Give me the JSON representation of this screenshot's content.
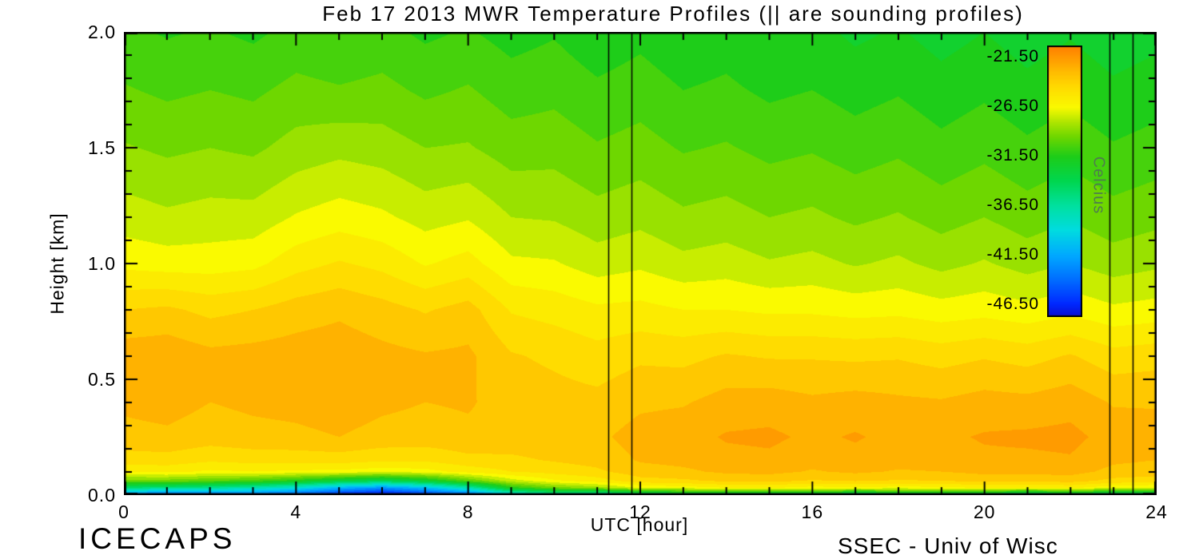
{
  "footer": {
    "left": "ICECAPS",
    "right": "SSEC - Univ of Wisc"
  },
  "chart_data": {
    "type": "heatmap",
    "title": "Feb 17 2013 MWR Temperature Profiles (|| are sounding profiles)",
    "xlabel": "UTC [hour]",
    "ylabel": "Height [km]",
    "xlim": [
      0,
      24
    ],
    "ylim": [
      0,
      2
    ],
    "x_ticks": {
      "major": [
        0,
        4,
        8,
        12,
        16,
        20,
        24
      ],
      "labels": [
        "0",
        "4",
        "8",
        "12",
        "16",
        "20",
        "24"
      ],
      "minor_step": 1
    },
    "y_ticks": {
      "major": [
        0,
        0.5,
        1,
        1.5,
        2
      ],
      "labels": [
        "0.0",
        "0.5",
        "1.0",
        "1.5",
        "2.0"
      ],
      "minor_step": 0.1
    },
    "hours": [
      0,
      1,
      2,
      3,
      4,
      5,
      6,
      7,
      8,
      9,
      10,
      11,
      12,
      13,
      14,
      15,
      16,
      17,
      18,
      19,
      20,
      21,
      22,
      23,
      24
    ],
    "heights": [
      0.0,
      0.03,
      0.06,
      0.1,
      0.15,
      0.25,
      0.4,
      0.6,
      0.8,
      1.0,
      1.2,
      1.5,
      1.75,
      2.0
    ],
    "temperature_c": [
      [
        -43.5,
        -44.5,
        -44.0,
        -44.0,
        -45.0,
        -47.0,
        -48.0,
        -46.5,
        -44.5,
        -39.5,
        -37.0,
        -38.0,
        -35.5,
        -34.5,
        -34.0,
        -35.0,
        -34.0,
        -35.5,
        -34.5,
        -33.5,
        -34.5,
        -36.0,
        -34.5,
        -35.5,
        -36.0
      ],
      [
        -35.0,
        -35.5,
        -36.0,
        -37.0,
        -38.5,
        -41.0,
        -42.5,
        -40.5,
        -37.0,
        -31.5,
        -29.5,
        -28.5,
        -26.8,
        -26.5,
        -26.0,
        -25.9,
        -26.4,
        -26.2,
        -26.4,
        -26.3,
        -25.9,
        -26.1,
        -25.8,
        -26.7,
        -27.0
      ],
      [
        -29.5,
        -29.5,
        -30.0,
        -30.5,
        -31.5,
        -33.0,
        -34.0,
        -32.5,
        -30.0,
        -27.5,
        -26.2,
        -25.5,
        -24.4,
        -24.2,
        -23.8,
        -23.7,
        -24.1,
        -23.9,
        -24.1,
        -24.0,
        -23.7,
        -23.8,
        -23.6,
        -24.3,
        -24.5
      ],
      [
        -25.8,
        -25.7,
        -26.2,
        -26.0,
        -26.2,
        -26.3,
        -26.6,
        -26.4,
        -25.6,
        -25.0,
        -24.6,
        -24.2,
        -23.4,
        -23.2,
        -22.8,
        -22.7,
        -23.1,
        -22.8,
        -23.1,
        -23.0,
        -22.7,
        -22.7,
        -22.6,
        -23.3,
        -23.5
      ],
      [
        -24.5,
        -24.4,
        -24.8,
        -24.6,
        -24.6,
        -24.5,
        -24.8,
        -24.8,
        -24.3,
        -24.2,
        -23.9,
        -23.6,
        -22.9,
        -22.7,
        -22.3,
        -22.2,
        -22.6,
        -22.3,
        -22.6,
        -22.5,
        -22.2,
        -22.2,
        -22.1,
        -22.8,
        -23.0
      ],
      [
        -23.3,
        -23.2,
        -23.5,
        -23.3,
        -23.2,
        -23.0,
        -23.3,
        -23.4,
        -23.2,
        -23.4,
        -23.3,
        -23.2,
        -22.6,
        -22.4,
        -21.9,
        -21.8,
        -22.2,
        -21.9,
        -22.3,
        -22.2,
        -21.9,
        -21.8,
        -21.7,
        -22.4,
        -22.6
      ],
      [
        -22.8,
        -22.6,
        -23.0,
        -22.8,
        -22.7,
        -22.5,
        -22.8,
        -23.0,
        -22.9,
        -23.4,
        -23.6,
        -23.7,
        -23.2,
        -23.1,
        -22.6,
        -22.5,
        -22.8,
        -22.6,
        -22.8,
        -22.9,
        -22.6,
        -22.7,
        -22.4,
        -23.1,
        -23.1
      ],
      [
        -22.4,
        -22.3,
        -22.7,
        -22.6,
        -22.5,
        -22.4,
        -22.7,
        -22.9,
        -22.8,
        -23.9,
        -24.2,
        -24.6,
        -24.2,
        -24.3,
        -23.9,
        -24.1,
        -24.1,
        -24.2,
        -24.1,
        -24.4,
        -24.1,
        -24.4,
        -23.9,
        -24.6,
        -24.4
      ],
      [
        -24.0,
        -23.8,
        -24.3,
        -24.0,
        -23.5,
        -23.2,
        -23.6,
        -24.1,
        -23.6,
        -25.1,
        -25.4,
        -25.8,
        -25.7,
        -26.0,
        -26.0,
        -26.2,
        -26.2,
        -26.4,
        -26.3,
        -26.6,
        -26.4,
        -26.7,
        -26.3,
        -26.8,
        -26.6
      ],
      [
        -26.3,
        -26.5,
        -26.5,
        -26.3,
        -25.4,
        -24.9,
        -25.3,
        -26.1,
        -25.6,
        -26.8,
        -26.9,
        -27.5,
        -27.2,
        -27.7,
        -27.5,
        -27.9,
        -27.7,
        -28.1,
        -27.8,
        -28.3,
        -27.9,
        -28.4,
        -28.0,
        -28.5,
        -28.2
      ],
      [
        -27.5,
        -27.8,
        -27.6,
        -27.6,
        -26.9,
        -26.5,
        -26.8,
        -27.4,
        -27.1,
        -28.0,
        -28.1,
        -28.6,
        -28.3,
        -28.8,
        -28.6,
        -29.0,
        -28.8,
        -29.2,
        -28.9,
        -29.4,
        -29.0,
        -29.5,
        -29.1,
        -29.6,
        -29.3
      ],
      [
        -28.9,
        -29.2,
        -29.0,
        -29.2,
        -28.6,
        -28.3,
        -28.5,
        -29.0,
        -28.9,
        -29.5,
        -29.4,
        -29.9,
        -29.6,
        -30.1,
        -29.9,
        -30.3,
        -30.1,
        -30.5,
        -30.2,
        -30.7,
        -30.3,
        -30.8,
        -30.4,
        -30.9,
        -30.6
      ],
      [
        -29.9,
        -30.2,
        -30.0,
        -30.2,
        -29.7,
        -29.9,
        -29.7,
        -30.2,
        -29.9,
        -30.5,
        -30.3,
        -30.8,
        -30.5,
        -31.0,
        -30.8,
        -31.2,
        -31.0,
        -31.4,
        -31.1,
        -31.6,
        -31.2,
        -31.7,
        -31.3,
        -31.8,
        -31.5
      ],
      [
        -30.8,
        -31.1,
        -30.9,
        -31.2,
        -30.7,
        -31.0,
        -30.7,
        -31.2,
        -30.9,
        -31.4,
        -31.1,
        -31.7,
        -31.3,
        -31.8,
        -31.5,
        -32.0,
        -31.7,
        -32.2,
        -31.9,
        -32.4,
        -32.0,
        -32.5,
        -32.1,
        -32.6,
        -32.3
      ]
    ],
    "sounding_profile_hours": [
      11.25,
      11.8,
      22.9,
      23.45
    ],
    "contour_band_c": 1.0,
    "colormap": [
      [
        -48.5,
        "#1400b4"
      ],
      [
        -46.5,
        "#0028ff"
      ],
      [
        -44.0,
        "#006eff"
      ],
      [
        -41.5,
        "#00aaff"
      ],
      [
        -39.0,
        "#00dce1"
      ],
      [
        -36.5,
        "#00e1a0"
      ],
      [
        -34.0,
        "#00d750"
      ],
      [
        -31.5,
        "#1ecd19"
      ],
      [
        -29.5,
        "#6ed700"
      ],
      [
        -28.0,
        "#afe600"
      ],
      [
        -26.5,
        "#fafa00"
      ],
      [
        -24.5,
        "#ffdc00"
      ],
      [
        -23.0,
        "#ffbe00"
      ],
      [
        -21.5,
        "#ff9b00"
      ],
      [
        -19.5,
        "#ff6e00"
      ]
    ],
    "colorbar": {
      "label": "Celcius",
      "tick_labels": [
        "-21.50",
        "-26.50",
        "-31.50",
        "-36.50",
        "-41.50",
        "-46.50"
      ],
      "tick_values": [
        -21.5,
        -26.5,
        -31.5,
        -36.5,
        -41.5,
        -46.5
      ],
      "range": [
        -47.75,
        -20.25
      ]
    }
  }
}
